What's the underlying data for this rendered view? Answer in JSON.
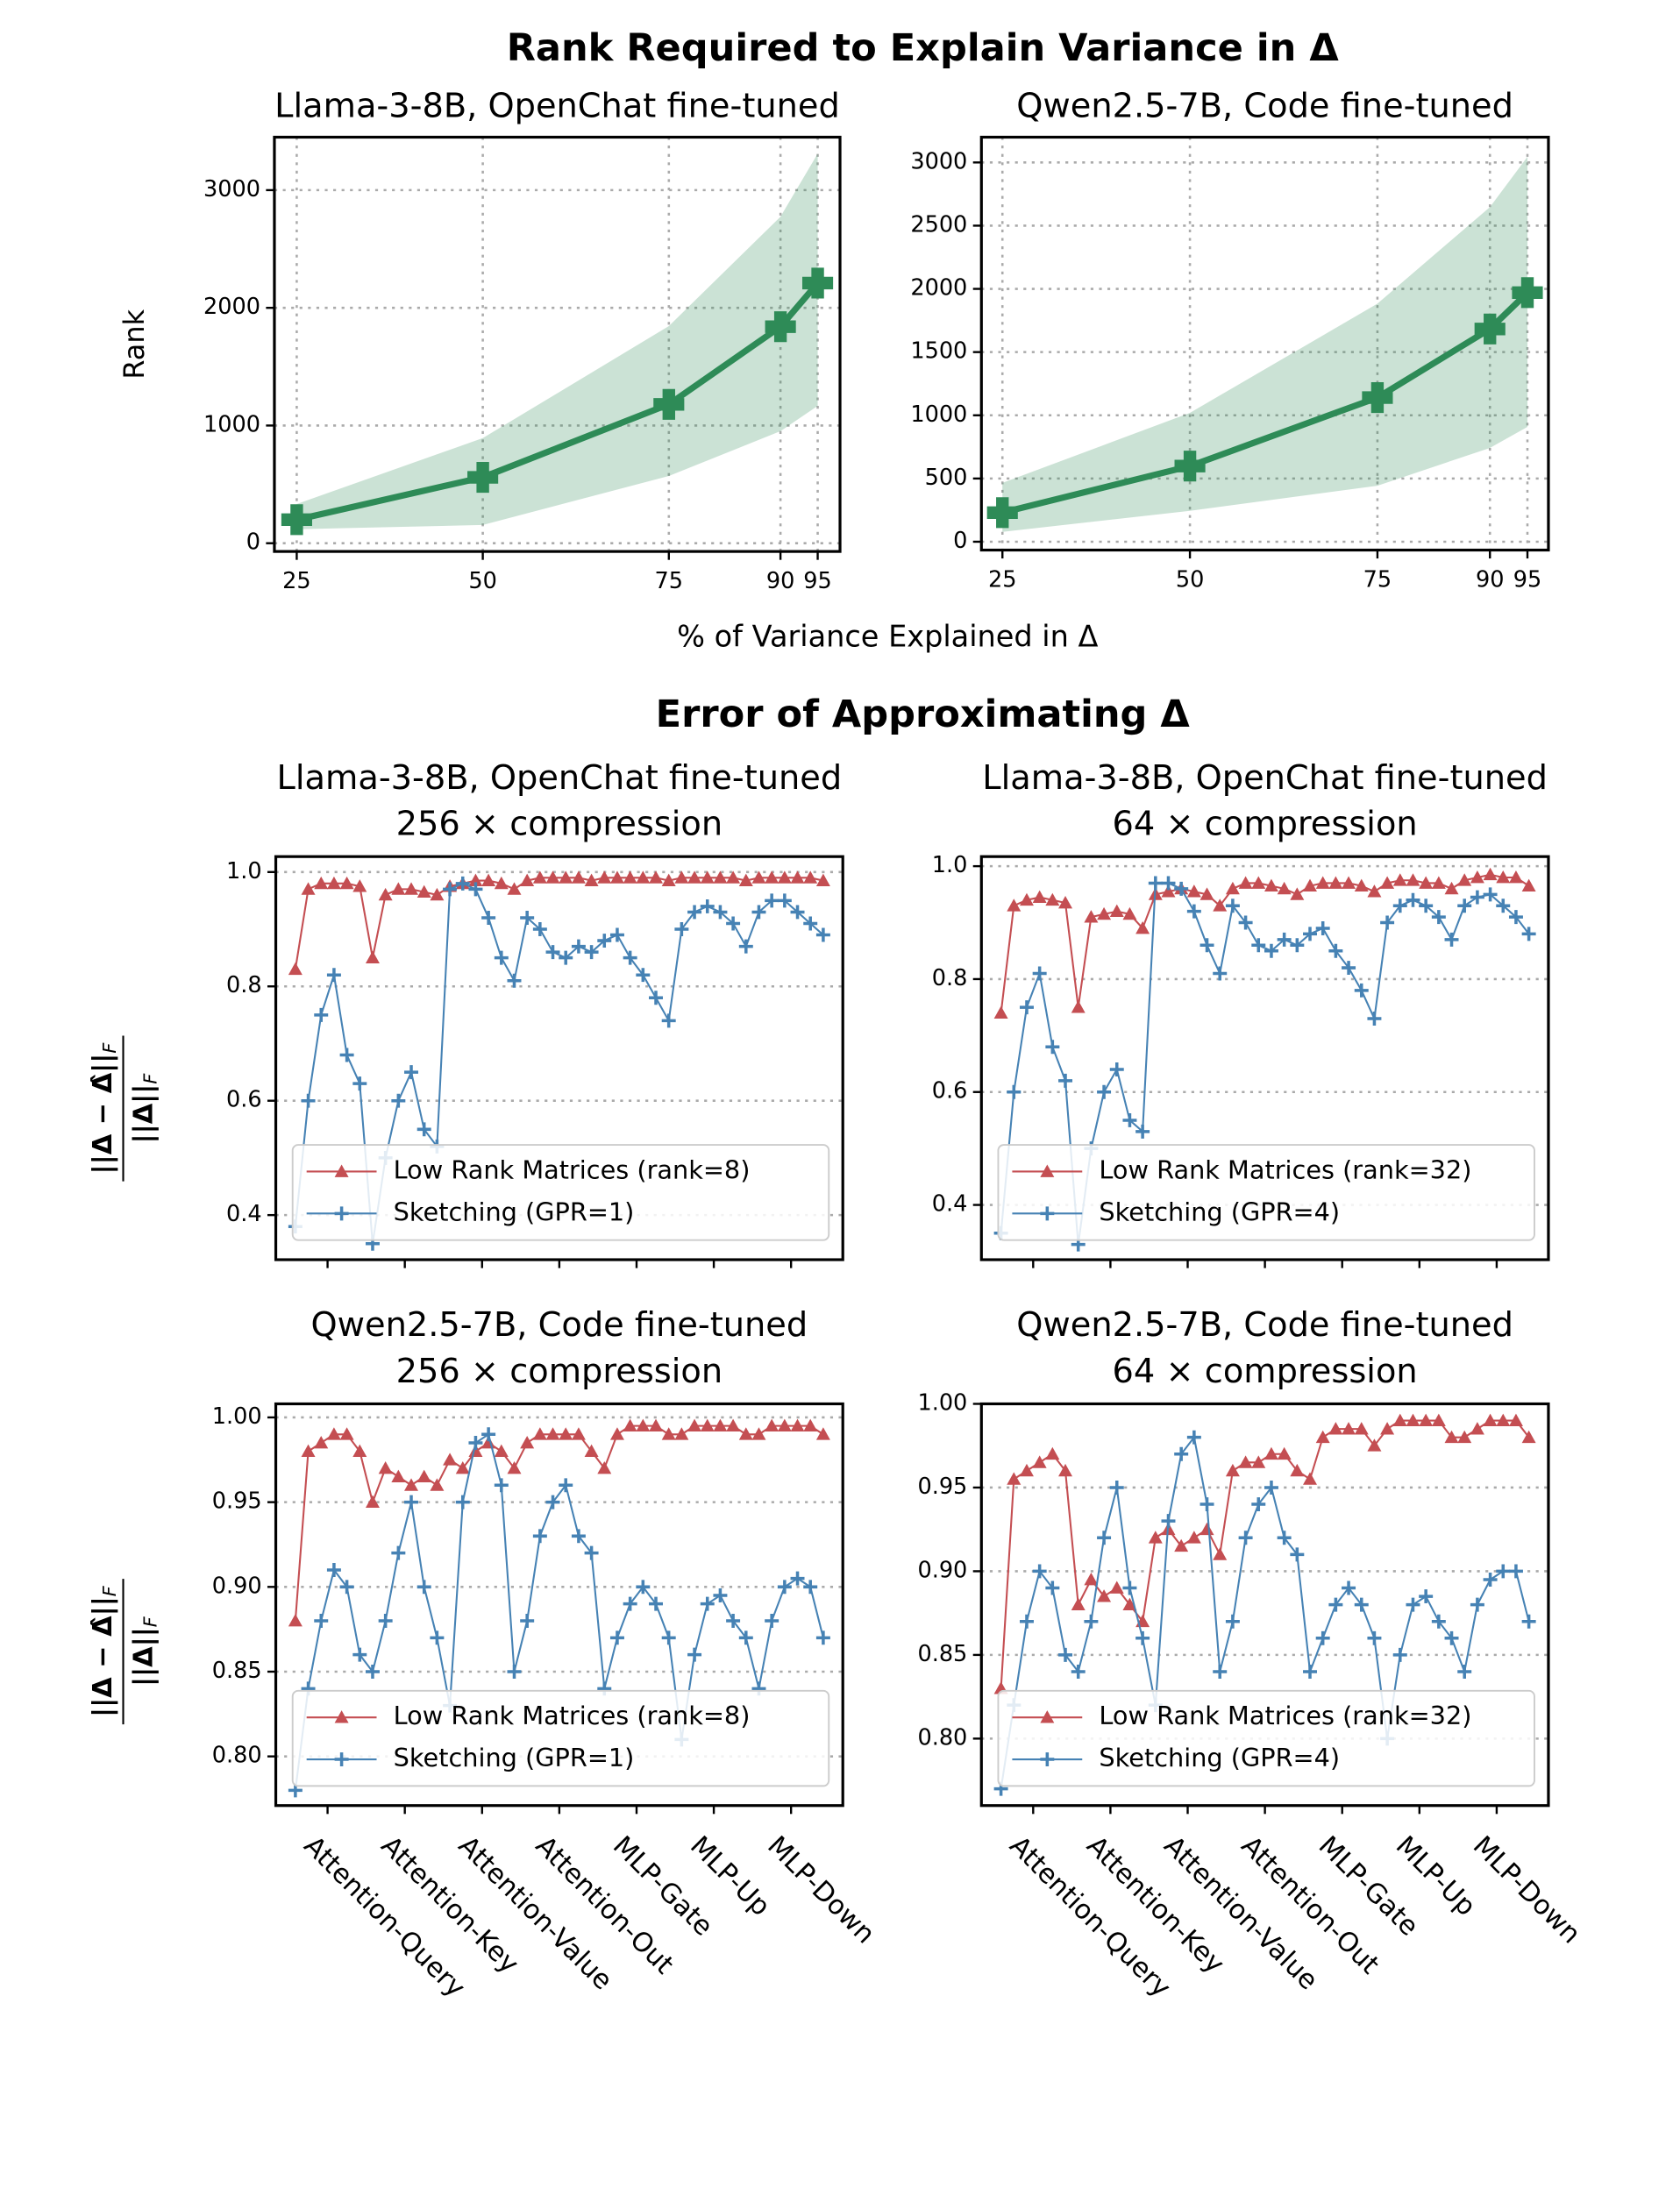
{
  "chart_data": [
    {
      "type": "line",
      "suptitle": "Rank Required to Explain Variance in Δ",
      "title": "Llama-3-8B, OpenChat fine-tuned",
      "xlabel": "% of Variance Explained in Δ",
      "ylabel": "Rank",
      "x": [
        25,
        50,
        75,
        90,
        95
      ],
      "series": [
        {
          "color": "#2e8b57",
          "marker": "bigplus",
          "values": [
            200,
            560,
            1180,
            1840,
            2210
          ],
          "band_lower": [
            119,
            155,
            571,
            952,
            1167
          ],
          "band_upper": [
            333,
            893,
            1845,
            2774,
            3310
          ]
        }
      ],
      "xlim": [
        22,
        98
      ],
      "ylim": [
        -70,
        3450
      ],
      "xticks": [
        25,
        50,
        75,
        90,
        95
      ],
      "yticks": [
        0,
        1000,
        2000,
        3000
      ],
      "grid": "both"
    },
    {
      "type": "line",
      "title": "Qwen2.5-7B, Code fine-tuned",
      "x": [
        25,
        50,
        75,
        90,
        95
      ],
      "series": [
        {
          "color": "#2e8b57",
          "marker": "bigplus",
          "values": [
            230,
            598,
            1140,
            1683,
            1970
          ],
          "band_lower": [
            78,
            244,
            443,
            742,
            908
          ],
          "band_upper": [
            465,
            1019,
            1883,
            2647,
            3045
          ]
        }
      ],
      "xlim": [
        22.2,
        97.8
      ],
      "ylim": [
        -66,
        3200
      ],
      "xticks": [
        25,
        50,
        75,
        90,
        95
      ],
      "yticks": [
        0,
        500,
        1000,
        1500,
        2000,
        2500,
        3000
      ],
      "grid": "both"
    },
    {
      "type": "line",
      "suptitle": "Error of Approximating Δ",
      "title": "Llama-3-8B, OpenChat fine-tuned",
      "subtitle": "256 × compression",
      "ylabel": {
        "numerator": "||Δ − Δ̂||",
        "denominator": "||Δ||",
        "subscript": "F"
      },
      "x": [
        0,
        1,
        2,
        3,
        4,
        5,
        6,
        7,
        8,
        9,
        10,
        11,
        12,
        13,
        14,
        15,
        16,
        17,
        18,
        19,
        20,
        21,
        22,
        23,
        24,
        25,
        26,
        27,
        28,
        29,
        30,
        31,
        32,
        33,
        34,
        35,
        36,
        37,
        38,
        39,
        40,
        41
      ],
      "series": [
        {
          "name": "Low Rank Matrices (rank=8)",
          "color": "#c44e52",
          "marker": "triangle",
          "values": [
            0.83,
            0.97,
            0.98,
            0.98,
            0.98,
            0.975,
            0.85,
            0.96,
            0.97,
            0.97,
            0.965,
            0.96,
            0.975,
            0.98,
            0.985,
            0.985,
            0.98,
            0.97,
            0.985,
            0.99,
            0.99,
            0.99,
            0.99,
            0.985,
            0.99,
            0.99,
            0.99,
            0.99,
            0.99,
            0.985,
            0.99,
            0.99,
            0.99,
            0.99,
            0.99,
            0.985,
            0.99,
            0.99,
            0.99,
            0.99,
            0.99,
            0.985
          ]
        },
        {
          "name": "Sketching (GPR=1)",
          "color": "#4682b4",
          "marker": "plus",
          "values": [
            0.38,
            0.6,
            0.75,
            0.82,
            0.68,
            0.63,
            0.35,
            0.5,
            0.6,
            0.65,
            0.55,
            0.52,
            0.97,
            0.98,
            0.97,
            0.92,
            0.85,
            0.81,
            0.92,
            0.9,
            0.86,
            0.85,
            0.87,
            0.86,
            0.88,
            0.89,
            0.85,
            0.82,
            0.78,
            0.74,
            0.9,
            0.93,
            0.94,
            0.93,
            0.91,
            0.87,
            0.93,
            0.95,
            0.95,
            0.93,
            0.91,
            0.89
          ]
        }
      ],
      "xlim": [
        -1.52,
        42.52
      ],
      "ylim": [
        0.322,
        1.027
      ],
      "xticks": [
        2.5,
        8.5,
        14.5,
        20.5,
        26.5,
        32.5,
        38.5
      ],
      "yticks": [
        0.4,
        0.6,
        0.8,
        {
          "value": 1,
          "label": "1.0"
        }
      ],
      "grid": "y",
      "legend": "lower left"
    },
    {
      "type": "line",
      "title": "Llama-3-8B, OpenChat fine-tuned",
      "subtitle": "64 × compression",
      "x": [
        0,
        1,
        2,
        3,
        4,
        5,
        6,
        7,
        8,
        9,
        10,
        11,
        12,
        13,
        14,
        15,
        16,
        17,
        18,
        19,
        20,
        21,
        22,
        23,
        24,
        25,
        26,
        27,
        28,
        29,
        30,
        31,
        32,
        33,
        34,
        35,
        36,
        37,
        38,
        39,
        40,
        41
      ],
      "series": [
        {
          "name": "Low Rank Matrices (rank=32)",
          "color": "#c44e52",
          "marker": "triangle",
          "values": [
            0.74,
            0.93,
            0.94,
            0.945,
            0.94,
            0.935,
            0.75,
            0.91,
            0.915,
            0.92,
            0.915,
            0.89,
            0.95,
            0.955,
            0.96,
            0.955,
            0.95,
            0.93,
            0.96,
            0.97,
            0.97,
            0.965,
            0.96,
            0.95,
            0.965,
            0.97,
            0.97,
            0.97,
            0.965,
            0.955,
            0.97,
            0.975,
            0.975,
            0.97,
            0.97,
            0.96,
            0.975,
            0.98,
            0.985,
            0.98,
            0.98,
            0.965
          ]
        },
        {
          "name": "Sketching (GPR=4)",
          "color": "#4682b4",
          "marker": "plus",
          "values": [
            0.35,
            0.6,
            0.75,
            0.81,
            0.68,
            0.62,
            0.33,
            0.5,
            0.6,
            0.64,
            0.55,
            0.53,
            0.97,
            0.97,
            0.96,
            0.92,
            0.86,
            0.81,
            0.93,
            0.9,
            0.86,
            0.85,
            0.87,
            0.86,
            0.88,
            0.89,
            0.85,
            0.82,
            0.78,
            0.73,
            0.9,
            0.93,
            0.94,
            0.93,
            0.91,
            0.87,
            0.93,
            0.945,
            0.95,
            0.93,
            0.91,
            0.88
          ]
        }
      ],
      "xlim": [
        -1.52,
        42.52
      ],
      "ylim": [
        0.303,
        1.017
      ],
      "xticks": [
        2.5,
        8.5,
        14.5,
        20.5,
        26.5,
        32.5,
        38.5
      ],
      "yticks": [
        0.4,
        0.6,
        0.8,
        {
          "value": 1,
          "label": "1.0"
        }
      ],
      "grid": "y",
      "legend": "lower left"
    },
    {
      "type": "line",
      "title": "Qwen2.5-7B, Code fine-tuned",
      "subtitle": "256 × compression",
      "ylabel": {
        "numerator": "||Δ − Δ̂||",
        "denominator": "||Δ||",
        "subscript": "F"
      },
      "x": [
        0,
        1,
        2,
        3,
        4,
        5,
        6,
        7,
        8,
        9,
        10,
        11,
        12,
        13,
        14,
        15,
        16,
        17,
        18,
        19,
        20,
        21,
        22,
        23,
        24,
        25,
        26,
        27,
        28,
        29,
        30,
        31,
        32,
        33,
        34,
        35,
        36,
        37,
        38,
        39,
        40,
        41
      ],
      "series": [
        {
          "name": "Low Rank Matrices (rank=8)",
          "color": "#c44e52",
          "marker": "triangle",
          "values": [
            0.88,
            0.98,
            0.985,
            0.99,
            0.99,
            0.98,
            0.95,
            0.97,
            0.965,
            0.96,
            0.965,
            0.96,
            0.975,
            0.97,
            0.98,
            0.985,
            0.98,
            0.97,
            0.985,
            0.99,
            0.99,
            0.99,
            0.99,
            0.98,
            0.97,
            0.99,
            0.995,
            0.995,
            0.995,
            0.99,
            0.99,
            0.995,
            0.995,
            0.995,
            0.995,
            0.99,
            0.99,
            0.995,
            0.995,
            0.995,
            0.995,
            0.99
          ]
        },
        {
          "name": "Sketching (GPR=1)",
          "color": "#4682b4",
          "marker": "plus",
          "values": [
            0.78,
            0.84,
            0.88,
            0.91,
            0.9,
            0.86,
            0.85,
            0.88,
            0.92,
            0.95,
            0.9,
            0.87,
            0.83,
            0.95,
            0.985,
            0.99,
            0.96,
            0.85,
            0.88,
            0.93,
            0.95,
            0.96,
            0.93,
            0.92,
            0.84,
            0.87,
            0.89,
            0.9,
            0.89,
            0.87,
            0.81,
            0.86,
            0.89,
            0.895,
            0.88,
            0.87,
            0.84,
            0.88,
            0.9,
            0.905,
            0.9,
            0.87
          ]
        }
      ],
      "xlim": [
        -1.52,
        42.52
      ],
      "ylim": [
        0.771,
        1.008
      ],
      "xticks": [
        {
          "value": 2.5,
          "label": "Attention-Query"
        },
        {
          "value": 8.5,
          "label": "Attention-Key"
        },
        {
          "value": 14.5,
          "label": "Attention-Value"
        },
        {
          "value": 20.5,
          "label": "Attention-Out"
        },
        {
          "value": 26.5,
          "label": "MLP-Gate"
        },
        {
          "value": 32.5,
          "label": "MLP-Up"
        },
        {
          "value": 38.5,
          "label": "MLP-Down"
        }
      ],
      "yticks": [
        {
          "value": 0.8,
          "label": "0.80"
        },
        0.85,
        {
          "value": 0.9,
          "label": "0.90"
        },
        0.95,
        {
          "value": 1,
          "label": "1.00"
        }
      ],
      "grid": "y",
      "legend": "lower left"
    },
    {
      "type": "line",
      "title": "Qwen2.5-7B, Code fine-tuned",
      "subtitle": "64 × compression",
      "x": [
        0,
        1,
        2,
        3,
        4,
        5,
        6,
        7,
        8,
        9,
        10,
        11,
        12,
        13,
        14,
        15,
        16,
        17,
        18,
        19,
        20,
        21,
        22,
        23,
        24,
        25,
        26,
        27,
        28,
        29,
        30,
        31,
        32,
        33,
        34,
        35,
        36,
        37,
        38,
        39,
        40,
        41
      ],
      "series": [
        {
          "name": "Low Rank Matrices (rank=32)",
          "color": "#c44e52",
          "marker": "triangle",
          "values": [
            0.83,
            0.955,
            0.96,
            0.965,
            0.97,
            0.96,
            0.88,
            0.895,
            0.885,
            0.89,
            0.88,
            0.87,
            0.92,
            0.925,
            0.915,
            0.92,
            0.925,
            0.91,
            0.96,
            0.965,
            0.965,
            0.97,
            0.97,
            0.96,
            0.955,
            0.98,
            0.985,
            0.985,
            0.985,
            0.975,
            0.985,
            0.99,
            0.99,
            0.99,
            0.99,
            0.98,
            0.98,
            0.985,
            0.99,
            0.99,
            0.99,
            0.98
          ]
        },
        {
          "name": "Sketching (GPR=4)",
          "color": "#4682b4",
          "marker": "plus",
          "values": [
            0.77,
            0.82,
            0.87,
            0.9,
            0.89,
            0.85,
            0.84,
            0.87,
            0.92,
            0.95,
            0.89,
            0.86,
            0.82,
            0.93,
            0.97,
            0.98,
            0.94,
            0.84,
            0.87,
            0.92,
            0.94,
            0.95,
            0.92,
            0.91,
            0.84,
            0.86,
            0.88,
            0.89,
            0.88,
            0.86,
            0.8,
            0.85,
            0.88,
            0.885,
            0.87,
            0.86,
            0.84,
            0.88,
            0.895,
            0.9,
            0.9,
            0.87
          ]
        }
      ],
      "xlim": [
        -1.52,
        42.52
      ],
      "ylim": [
        0.76,
        1.0
      ],
      "xticks": [
        {
          "value": 2.5,
          "label": "Attention-Query"
        },
        {
          "value": 8.5,
          "label": "Attention-Key"
        },
        {
          "value": 14.5,
          "label": "Attention-Value"
        },
        {
          "value": 20.5,
          "label": "Attention-Out"
        },
        {
          "value": 26.5,
          "label": "MLP-Gate"
        },
        {
          "value": 32.5,
          "label": "MLP-Up"
        },
        {
          "value": 38.5,
          "label": "MLP-Down"
        }
      ],
      "yticks": [
        {
          "value": 0.8,
          "label": "0.80"
        },
        0.85,
        {
          "value": 0.9,
          "label": "0.90"
        },
        0.95,
        {
          "value": 1,
          "label": "1.00"
        }
      ],
      "grid": "y",
      "legend": "lower left"
    }
  ]
}
